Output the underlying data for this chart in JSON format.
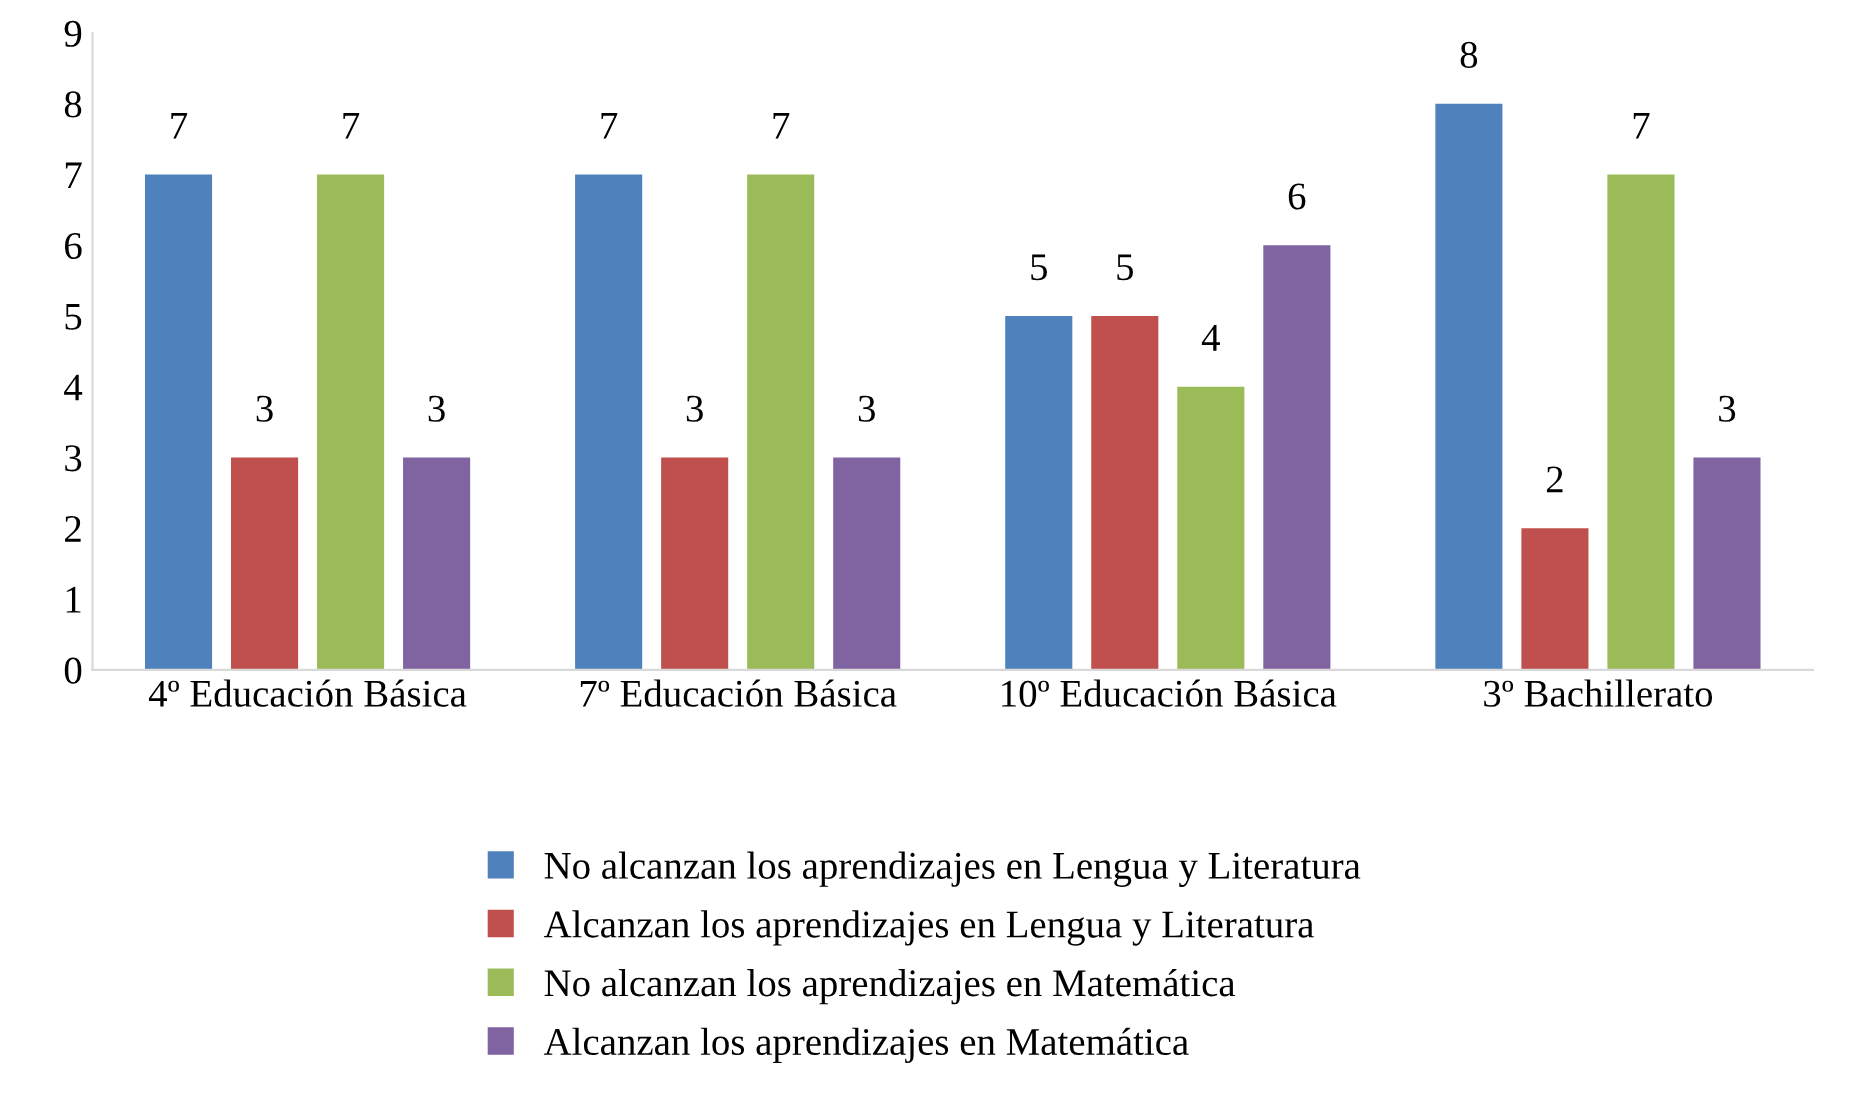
{
  "chart_data": {
    "type": "bar",
    "categories": [
      "4º Educación Básica",
      "7º Educación Básica",
      "10º Educación Básica",
      "3º Bachillerato"
    ],
    "series": [
      {
        "name": "No alcanzan los aprendizajes en Lengua y Literatura",
        "color": "#4f81bd",
        "values": [
          7,
          7,
          5,
          8
        ]
      },
      {
        "name": "Alcanzan los aprendizajes en Lengua y Literatura",
        "color": "#c0504d",
        "values": [
          3,
          3,
          5,
          2
        ]
      },
      {
        "name": "No alcanzan los aprendizajes en Matemática",
        "color": "#9bbb59",
        "values": [
          7,
          7,
          4,
          7
        ]
      },
      {
        "name": "Alcanzan los aprendizajes en Matemática",
        "color": "#8064a2",
        "values": [
          3,
          3,
          6,
          3
        ]
      }
    ],
    "ylim": [
      0,
      9
    ],
    "yticks": [
      0,
      1,
      2,
      3,
      4,
      5,
      6,
      7,
      8,
      9
    ],
    "grid": false,
    "data_labels": true,
    "legend": "bottom"
  }
}
